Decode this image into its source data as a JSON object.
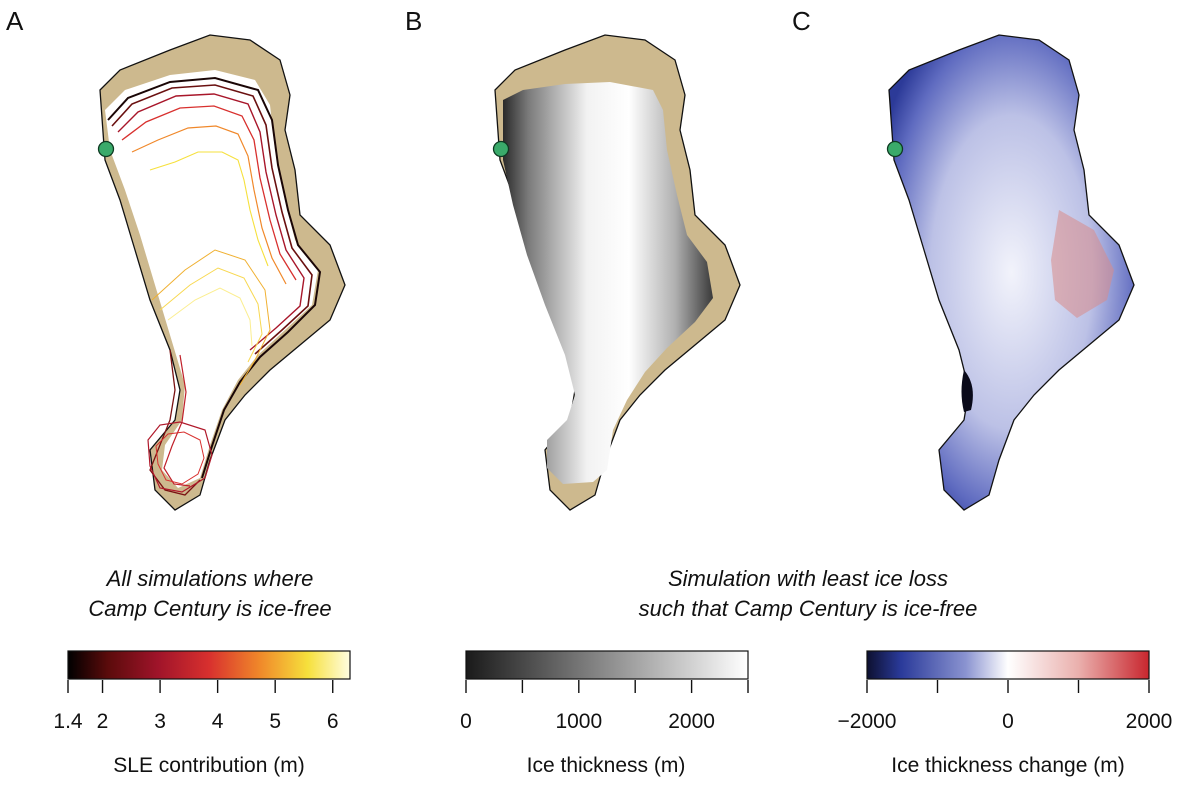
{
  "panels": [
    {
      "letter": "A"
    },
    {
      "letter": "B"
    },
    {
      "letter": "C"
    }
  ],
  "captions": {
    "left": [
      "All simulations where",
      "Camp Century is ice-free"
    ],
    "right": [
      "Simulation with least ice loss",
      "such that Camp Century is ice-free"
    ]
  },
  "colorbars": [
    {
      "id": "sle",
      "title": "SLE contribution (m)",
      "ticks": [
        "1.4",
        "2",
        "3",
        "4",
        "5",
        "6"
      ],
      "range": [
        1.4,
        6.3
      ],
      "tick_values": [
        1.4,
        2,
        3,
        4,
        5,
        6
      ],
      "colors": [
        "#000000",
        "#5a0b0b",
        "#a0142a",
        "#d8302e",
        "#f0882a",
        "#f6e03c",
        "#fffde0"
      ]
    },
    {
      "id": "thickness",
      "title": "Ice thickness (m)",
      "ticks": [
        "0",
        "1000",
        "2000"
      ],
      "range": [
        0,
        2500
      ],
      "tick_values": [
        0,
        500,
        1000,
        1500,
        2000,
        2500
      ],
      "labeled_values": [
        0,
        1000,
        2000
      ],
      "colors": [
        "#1a1a1a",
        "#8c8c8c",
        "#ffffff"
      ]
    },
    {
      "id": "change",
      "title": "Ice thickness change (m)",
      "ticks": [
        "−2000",
        "0",
        "2000"
      ],
      "range": [
        -2000,
        2000
      ],
      "tick_values": [
        -2000,
        -1000,
        0,
        1000,
        2000
      ],
      "labeled_values": [
        -2000,
        0,
        2000
      ],
      "colors": [
        "#0d1030",
        "#2a3a9a",
        "#8a93d0",
        "#ffffff",
        "#eab0ad",
        "#c8262e"
      ]
    }
  ],
  "marker": {
    "name": "Camp Century",
    "color": "#3aaa6a"
  },
  "colors": {
    "land": "#cdb98e",
    "coast": "#111111"
  }
}
